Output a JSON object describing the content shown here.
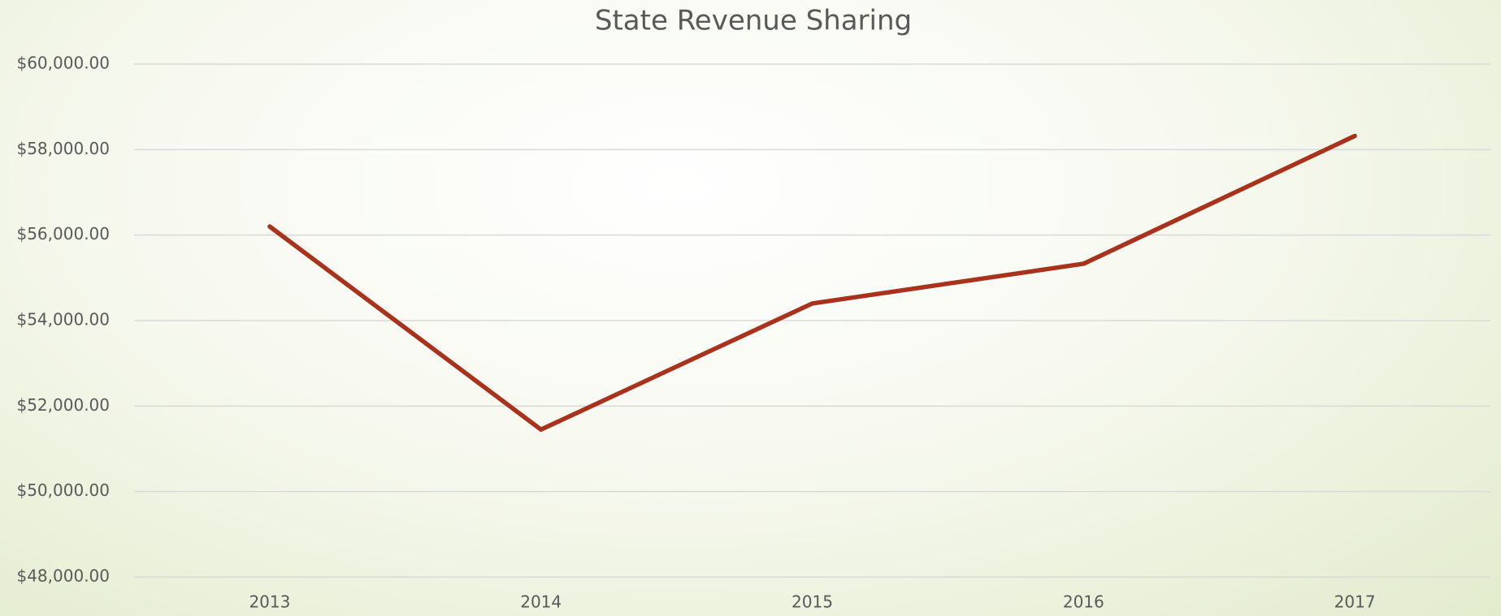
{
  "chart_data": {
    "type": "line",
    "title": "State Revenue Sharing",
    "categories": [
      "2013",
      "2014",
      "2015",
      "2016",
      "2017"
    ],
    "series": [
      {
        "name": "State Revenue Sharing",
        "color": "#a8321b",
        "values": [
          56200,
          51450,
          54400,
          55330,
          58320
        ]
      }
    ],
    "ylim": [
      48000,
      60000
    ],
    "yticks": [
      {
        "value": 48000,
        "label": "$48,000.00"
      },
      {
        "value": 50000,
        "label": "$50,000.00"
      },
      {
        "value": 52000,
        "label": "$52,000.00"
      },
      {
        "value": 54000,
        "label": "$54,000.00"
      },
      {
        "value": 56000,
        "label": "$56,000.00"
      },
      {
        "value": 58000,
        "label": "$58,000.00"
      },
      {
        "value": 60000,
        "label": "$60,000.00"
      }
    ],
    "grid": true
  }
}
